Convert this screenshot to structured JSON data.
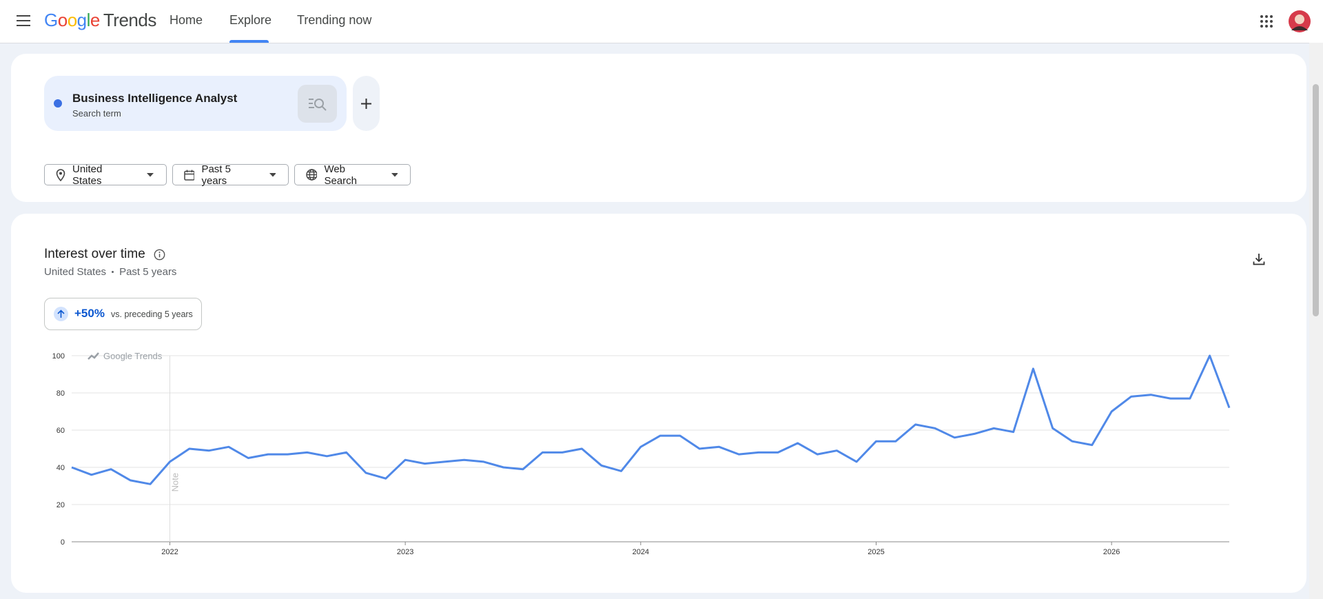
{
  "header": {
    "logo_google": "Google",
    "logo_product": "Trends",
    "nav": [
      "Home",
      "Explore",
      "Trending now"
    ]
  },
  "search": {
    "term": "Business Intelligence Analyst",
    "kind": "Search term"
  },
  "filters": [
    "United States",
    "Past 5 years",
    "Web Search"
  ],
  "interest": {
    "title": "Interest over time",
    "location": "United States",
    "period": "Past 5 years",
    "change": "+50%",
    "change_note": "vs. preceding 5 years"
  },
  "chart_data": {
    "type": "line",
    "color": "#5089e8",
    "watermark": "Google Trends",
    "annotations": [
      {
        "x": 2022,
        "text": "Note"
      }
    ],
    "x": [
      2021.583,
      2021.667,
      2021.75,
      2021.833,
      2021.917,
      2022,
      2022.083,
      2022.167,
      2022.25,
      2022.333,
      2022.417,
      2022.5,
      2022.583,
      2022.667,
      2022.75,
      2022.833,
      2022.917,
      2023,
      2023.083,
      2023.167,
      2023.25,
      2023.333,
      2023.417,
      2023.5,
      2023.583,
      2023.667,
      2023.75,
      2023.833,
      2023.917,
      2024,
      2024.083,
      2024.167,
      2024.25,
      2024.333,
      2024.417,
      2024.5,
      2024.583,
      2024.667,
      2024.75,
      2024.833,
      2024.917,
      2025,
      2025.083,
      2025.167,
      2025.25,
      2025.333,
      2025.417,
      2025.5,
      2025.583,
      2025.667,
      2025.75,
      2025.833,
      2025.917,
      2026,
      2026.083,
      2026.167,
      2026.25,
      2026.333,
      2026.417,
      2026.5
    ],
    "values": [
      40,
      36,
      39,
      33,
      31,
      43,
      50,
      49,
      51,
      45,
      47,
      47,
      48,
      46,
      48,
      37,
      34,
      44,
      42,
      43,
      44,
      43,
      40,
      39,
      48,
      48,
      50,
      41,
      38,
      51,
      57,
      57,
      50,
      51,
      47,
      48,
      48,
      53,
      47,
      49,
      43,
      54,
      54,
      63,
      61,
      56,
      58,
      61,
      59,
      93,
      61,
      54,
      52,
      70,
      78,
      79,
      77,
      77,
      100,
      72
    ],
    "xlim": [
      2021.583,
      2026.5
    ],
    "xticks": [
      2022,
      2023,
      2024,
      2025,
      2026
    ],
    "ylim": [
      0,
      100
    ],
    "yticks": [
      0,
      20,
      40,
      60,
      80,
      100
    ],
    "grid": true
  }
}
